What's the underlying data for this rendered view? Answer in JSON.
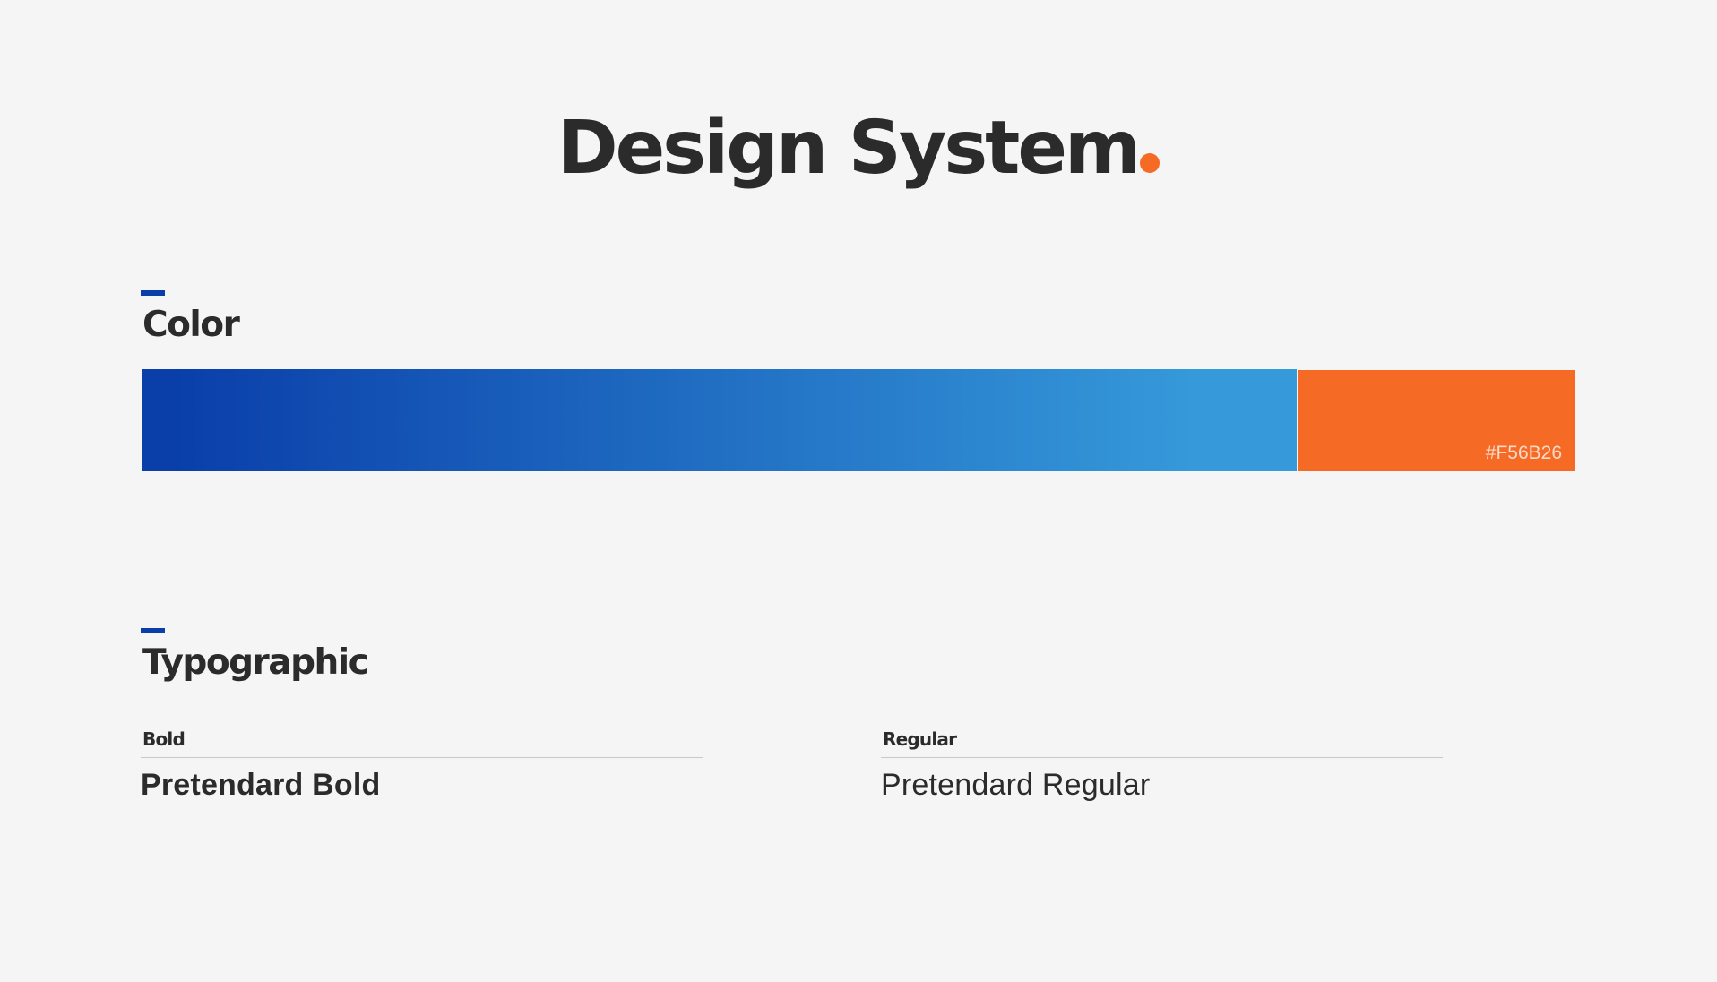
{
  "title": {
    "text": "Design System",
    "dot_color": "#F56B26"
  },
  "color_section": {
    "heading": "Color",
    "gradient": {
      "start": "#0A3FAA",
      "end": "#369ADA"
    },
    "orange_swatch": {
      "color": "#F56B26",
      "hex_label": "#F56B26"
    }
  },
  "typographic_section": {
    "heading": "Typographic",
    "bold": {
      "label": "Bold",
      "sample": "Pretendard Bold"
    },
    "regular": {
      "label": "Regular",
      "sample": "Pretendard Regular"
    }
  },
  "colors": {
    "accent_blue": "#0A3FAA",
    "text_dark": "#2B2B2B",
    "background": "#F5F5F5"
  }
}
